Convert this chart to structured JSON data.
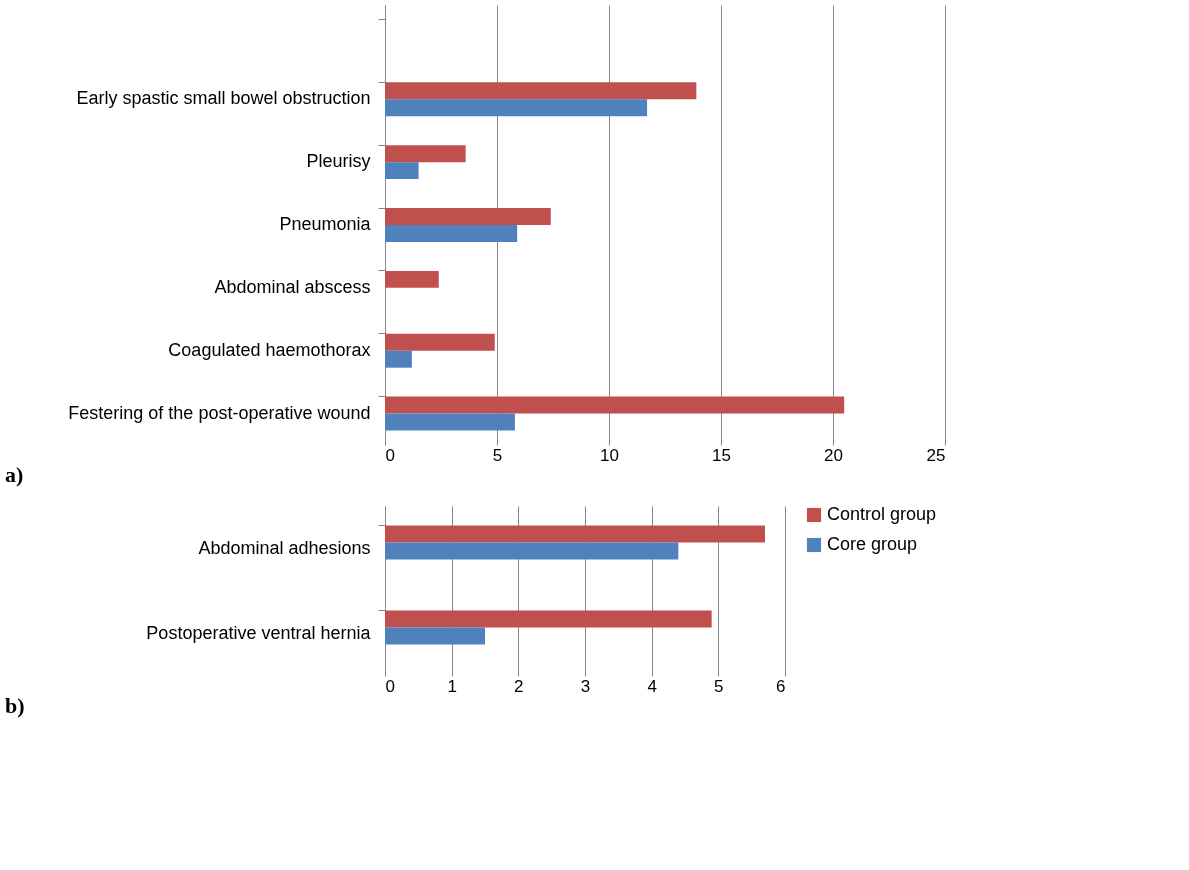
{
  "chart_data": [
    {
      "type": "bar",
      "orientation": "horizontal",
      "categories": [
        null,
        "Early spastic small bowel obstruction",
        "Pleurisy",
        "Pneumonia",
        "Abdominal abscess",
        "Coagulated haemothorax",
        "Festering of the post-operative wound"
      ],
      "series": [
        {
          "color": "#c0504d",
          "values": [
            null,
            13.9,
            3.6,
            7.4,
            2.4,
            4.9,
            20.5
          ]
        },
        {
          "color": "#4f81bd",
          "values": [
            null,
            11.7,
            1.5,
            5.9,
            0,
            1.2,
            5.8
          ]
        }
      ],
      "xlim": [
        0,
        25
      ],
      "xticks": [
        0,
        5,
        10,
        15,
        20,
        25
      ],
      "grid": "x",
      "legend": false,
      "annotations": [
        "a)"
      ]
    },
    {
      "type": "bar",
      "orientation": "horizontal",
      "categories": [
        "Abdominal adhesions",
        "Postoperative ventral hernia"
      ],
      "series": [
        {
          "name": "Control group",
          "color": "#c0504d",
          "values": [
            5.7,
            4.9
          ]
        },
        {
          "name": "Core group",
          "color": "#4f81bd",
          "values": [
            4.4,
            1.5
          ]
        }
      ],
      "xlim": [
        0,
        6
      ],
      "xticks": [
        0,
        1,
        2,
        3,
        4,
        5,
        6
      ],
      "grid": "x",
      "legend": "right",
      "annotations": [
        "b)"
      ]
    }
  ]
}
